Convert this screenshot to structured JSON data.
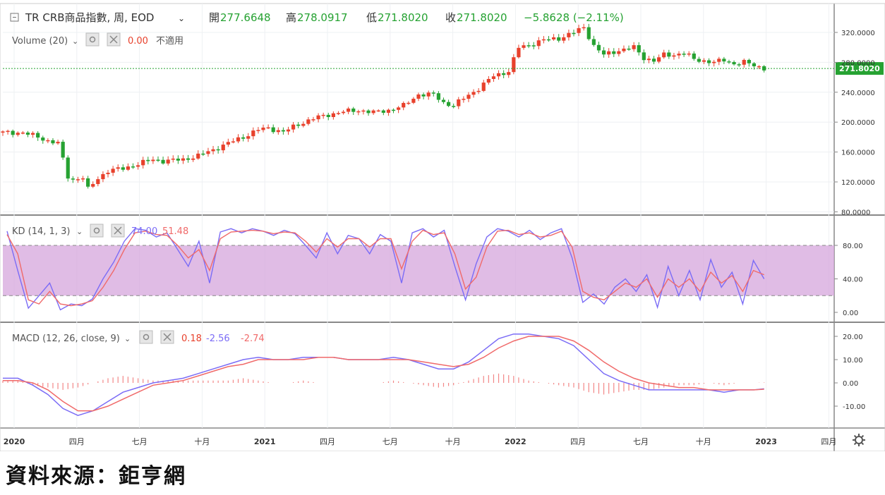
{
  "header": {
    "symbol": "TR CRB商品指數, 周, EOD",
    "open_label": "開",
    "open": "277.6648",
    "high_label": "高",
    "high": "278.0917",
    "low_label": "低",
    "low": "271.8020",
    "close_label": "收",
    "close": "271.8020",
    "change": "−5.8628 (−2.11%)",
    "volume_label": "Volume (20)",
    "volume_value": "0.00",
    "volume_na": "不適用"
  },
  "price_axis": {
    "ticks": [
      "320.0000",
      "280.0000",
      "240.0000",
      "200.0000",
      "160.0000",
      "120.0000",
      "80.0000"
    ],
    "last": "271.8020"
  },
  "kd": {
    "label": "KD (14, 1, 3)",
    "k_value": "74.00",
    "d_value": "51.48",
    "ticks": [
      "80.00",
      "40.00",
      "0.00"
    ],
    "upper": 80,
    "lower": 20
  },
  "macd": {
    "label": "MACD (12, 26, close, 9)",
    "hist_value": "0.18",
    "macd_value": "-2.56",
    "signal_value": "-2.74",
    "ticks": [
      "20.00",
      "10.00",
      "0.00",
      "-10.00"
    ]
  },
  "time_axis": {
    "labels": [
      "2020",
      "四月",
      "七月",
      "十月",
      "2021",
      "四月",
      "七月",
      "十月",
      "2022",
      "四月",
      "七月",
      "十月",
      "2023",
      "四月"
    ]
  },
  "colors": {
    "up": "#e8412c",
    "down": "#26a232",
    "k": "#7b6cf6",
    "d": "#f06a6a",
    "band": "#d6a6dc",
    "macd": "#7b6cf6",
    "signal": "#f06a6a",
    "header_green": "#26a232",
    "last_price": "#26a232"
  },
  "caption": "資料來源：鉅亨網",
  "chart_data": [
    {
      "type": "candlestick",
      "x_axis": [
        "2020",
        "四月",
        "七月",
        "十月",
        "2021",
        "四月",
        "七月",
        "十月",
        "2022",
        "四月",
        "七月",
        "十月",
        "2023",
        "四月"
      ],
      "close_path": [
        [
          0,
          186
        ],
        [
          4,
          186
        ],
        [
          7,
          180
        ],
        [
          9,
          175
        ],
        [
          11,
          172
        ],
        [
          12,
          150
        ],
        [
          13,
          127
        ],
        [
          14,
          123
        ],
        [
          16,
          126
        ],
        [
          17,
          110
        ],
        [
          19,
          125
        ],
        [
          21,
          135
        ],
        [
          24,
          138
        ],
        [
          27,
          144
        ],
        [
          30,
          150
        ],
        [
          32,
          148
        ],
        [
          36,
          150
        ],
        [
          39,
          155
        ],
        [
          42,
          163
        ],
        [
          45,
          172
        ],
        [
          48,
          180
        ],
        [
          51,
          190
        ],
        [
          53,
          192
        ],
        [
          56,
          187
        ],
        [
          59,
          197
        ],
        [
          62,
          205
        ],
        [
          65,
          210
        ],
        [
          68,
          214
        ],
        [
          71,
          216
        ],
        [
          74,
          213
        ],
        [
          77,
          216
        ],
        [
          80,
          222
        ],
        [
          83,
          237
        ],
        [
          86,
          237
        ],
        [
          88,
          226
        ],
        [
          90,
          222
        ],
        [
          92,
          232
        ],
        [
          95,
          245
        ],
        [
          98,
          262
        ],
        [
          101,
          268
        ],
        [
          103,
          300
        ],
        [
          105,
          303
        ],
        [
          108,
          310
        ],
        [
          111,
          312
        ],
        [
          114,
          320
        ],
        [
          116,
          327
        ],
        [
          118,
          302
        ],
        [
          120,
          290
        ],
        [
          123,
          296
        ],
        [
          126,
          300
        ],
        [
          128,
          286
        ],
        [
          130,
          282
        ],
        [
          132,
          290
        ],
        [
          134,
          290
        ],
        [
          136,
          293
        ],
        [
          138,
          284
        ],
        [
          140,
          282
        ],
        [
          142,
          280
        ],
        [
          144,
          283
        ],
        [
          146,
          278
        ],
        [
          148,
          280
        ],
        [
          150,
          276
        ],
        [
          152,
          272
        ]
      ],
      "last": 271.802,
      "ylim": [
        80,
        330
      ]
    },
    {
      "type": "line",
      "title": "KD (14, 1, 3)",
      "series": [
        {
          "name": "K",
          "values": [
            97,
            50,
            5,
            20,
            35,
            3,
            10,
            8,
            16,
            40,
            60,
            85,
            100,
            98,
            90,
            95,
            75,
            55,
            85,
            35,
            96,
            100,
            95,
            100,
            97,
            92,
            98,
            94,
            80,
            65,
            95,
            70,
            92,
            88,
            70,
            93,
            85,
            35,
            95,
            100,
            90,
            98,
            55,
            15,
            58,
            90,
            100,
            97,
            90,
            98,
            87,
            95,
            100,
            65,
            12,
            22,
            10,
            30,
            40,
            25,
            45,
            6,
            55,
            20,
            50,
            15,
            63,
            30,
            48,
            10,
            62,
            40
          ]
        },
        {
          "name": "D",
          "values": [
            93,
            70,
            15,
            10,
            25,
            10,
            8,
            10,
            14,
            30,
            50,
            75,
            95,
            97,
            93,
            92,
            80,
            65,
            75,
            50,
            88,
            96,
            97,
            98,
            97,
            94,
            96,
            95,
            85,
            72,
            88,
            78,
            88,
            88,
            78,
            88,
            88,
            52,
            85,
            98,
            93,
            95,
            70,
            28,
            42,
            78,
            97,
            98,
            93,
            95,
            90,
            92,
            97,
            78,
            25,
            18,
            15,
            25,
            35,
            30,
            40,
            18,
            40,
            30,
            40,
            25,
            48,
            35,
            44,
            25,
            50,
            45
          ]
        }
      ],
      "ylim": [
        0,
        100
      ]
    },
    {
      "type": "line",
      "title": "MACD (12, 26, close, 9)",
      "x": [
        0,
        3,
        6,
        9,
        12,
        15,
        18,
        21,
        24,
        27,
        30,
        33,
        36,
        39,
        42,
        45,
        48,
        51,
        54,
        57,
        60,
        63,
        66,
        69,
        72,
        75,
        78,
        81,
        84,
        87,
        90,
        93,
        96,
        99,
        102,
        105,
        108,
        111,
        114,
        117,
        120,
        123,
        126,
        129,
        132,
        135,
        138,
        141,
        144,
        147,
        150,
        152
      ],
      "series": [
        {
          "name": "MACD",
          "values": [
            2,
            2,
            -1,
            -5,
            -11,
            -14,
            -12,
            -8,
            -4,
            -2,
            0,
            1,
            2,
            4,
            6,
            8,
            10,
            11,
            10,
            10,
            11,
            11,
            11,
            10,
            10,
            10,
            11,
            10,
            8,
            6,
            6,
            9,
            14,
            19,
            21,
            21,
            20,
            19,
            16,
            10,
            4,
            1,
            -1,
            -3,
            -3,
            -3,
            -3,
            -3,
            -4,
            -3,
            -3,
            -2.56
          ]
        },
        {
          "name": "Signal",
          "values": [
            1,
            1,
            0,
            -3,
            -8,
            -12,
            -12,
            -10,
            -7,
            -4,
            -1,
            0,
            1,
            3,
            5,
            7,
            8,
            10,
            10,
            10,
            10,
            11,
            11,
            10,
            10,
            10,
            10,
            10,
            9,
            8,
            7,
            8,
            11,
            15,
            18,
            20,
            20,
            20,
            18,
            14,
            9,
            5,
            2,
            0,
            -1,
            -2,
            -2,
            -3,
            -3,
            -3,
            -3,
            -2.74
          ]
        }
      ],
      "histogram": [
        1,
        1,
        -1,
        -2,
        -3,
        -2,
        0,
        2,
        3,
        2,
        1,
        1,
        1,
        1,
        1,
        1,
        2,
        1,
        0,
        0,
        1,
        0,
        0,
        0,
        0,
        0,
        1,
        0,
        -1,
        -2,
        -1,
        1,
        3,
        4,
        3,
        1,
        0,
        -1,
        -2,
        -4,
        -5,
        -4,
        -3,
        -3,
        -2,
        -1,
        -1,
        0,
        -1,
        0,
        0,
        0.18
      ],
      "ylim": [
        -15,
        25
      ]
    }
  ]
}
